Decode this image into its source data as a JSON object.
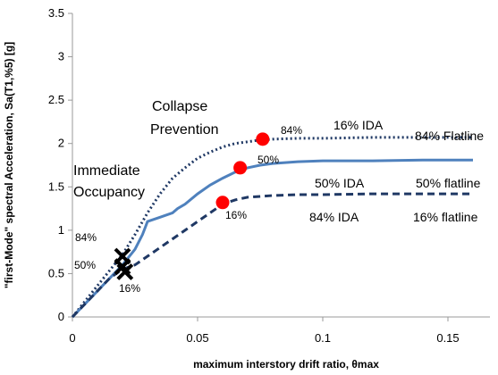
{
  "chart_data": {
    "type": "line",
    "xlabel": "maximum interstory drift ratio, θmax",
    "ylabel": "\"first-Mode\" spectral Acceleration, Sa(T1,%5) [g]",
    "xlim": [
      0,
      0.16
    ],
    "ylim": [
      0,
      3.5
    ],
    "xticks": [
      0,
      0.05,
      0.1,
      0.15
    ],
    "xtick_labels": [
      "0",
      "0.05",
      "0.1",
      "0.15"
    ],
    "yticks": [
      0,
      0.5,
      1,
      1.5,
      2,
      2.5,
      3,
      3.5
    ],
    "ytick_labels": [
      "0",
      "0.5",
      "1",
      "1.5",
      "2",
      "2.5",
      "3",
      "3.5"
    ],
    "grid": false,
    "series": [
      {
        "name": "84% IDA",
        "color": "#1f3864",
        "style": "dotted",
        "x": [
          0,
          0.005,
          0.01,
          0.015,
          0.02,
          0.025,
          0.03,
          0.035,
          0.04,
          0.045,
          0.05,
          0.055,
          0.06,
          0.065,
          0.07,
          0.075,
          0.08,
          0.09,
          0.1,
          0.12,
          0.14,
          0.16
        ],
        "y": [
          0,
          0.18,
          0.36,
          0.54,
          0.72,
          0.95,
          1.2,
          1.42,
          1.6,
          1.72,
          1.83,
          1.9,
          1.96,
          2.0,
          2.02,
          2.04,
          2.05,
          2.06,
          2.06,
          2.07,
          2.07,
          2.07
        ]
      },
      {
        "name": "50% IDA",
        "color": "#4f81bd",
        "style": "solid",
        "x": [
          0,
          0.005,
          0.01,
          0.015,
          0.02,
          0.025,
          0.028,
          0.03,
          0.035,
          0.04,
          0.042,
          0.045,
          0.05,
          0.055,
          0.06,
          0.065,
          0.07,
          0.075,
          0.08,
          0.09,
          0.1,
          0.12,
          0.14,
          0.16
        ],
        "y": [
          0,
          0.15,
          0.3,
          0.45,
          0.6,
          0.78,
          0.95,
          1.1,
          1.15,
          1.2,
          1.25,
          1.3,
          1.42,
          1.52,
          1.6,
          1.67,
          1.72,
          1.75,
          1.77,
          1.79,
          1.8,
          1.8,
          1.81,
          1.81
        ]
      },
      {
        "name": "16% IDA",
        "color": "#1f3864",
        "style": "dashed",
        "x": [
          0,
          0.005,
          0.01,
          0.015,
          0.02,
          0.025,
          0.03,
          0.035,
          0.04,
          0.045,
          0.05,
          0.055,
          0.06,
          0.065,
          0.07,
          0.08,
          0.09,
          0.1,
          0.12,
          0.14,
          0.16
        ],
        "y": [
          0,
          0.15,
          0.3,
          0.45,
          0.55,
          0.6,
          0.7,
          0.8,
          0.9,
          1.0,
          1.1,
          1.2,
          1.3,
          1.35,
          1.38,
          1.4,
          1.41,
          1.41,
          1.42,
          1.42,
          1.42
        ]
      }
    ],
    "collapse_points": [
      {
        "label": "84%",
        "x": 0.076,
        "y": 2.05,
        "color": "#ff0000"
      },
      {
        "label": "50%",
        "x": 0.067,
        "y": 1.72,
        "color": "#ff0000"
      },
      {
        "label": "16%",
        "x": 0.06,
        "y": 1.32,
        "color": "#ff0000"
      }
    ],
    "io_points": [
      {
        "label": "84%",
        "x": 0.02,
        "y": 0.7
      },
      {
        "label": "50%",
        "x": 0.02,
        "y": 0.58
      },
      {
        "label": "16%",
        "x": 0.021,
        "y": 0.52
      }
    ],
    "io_marker_color": "#000000",
    "annotations": {
      "collapse_prevention_1": "Collapse",
      "collapse_prevention_2": "Prevention",
      "immediate_occupancy_1": "Immediate",
      "immediate_occupancy_2": "Occupancy",
      "label_16_ida": "16% IDA",
      "label_50_ida": "50% IDA",
      "label_84_ida": "84% IDA",
      "label_84_flatline": "84% Flatline",
      "label_50_flatline": "50% flatline",
      "label_16_flatline": "16% flatline",
      "cp_84": "84%",
      "cp_50": "50%",
      "cp_16": "16%",
      "io_84": "84%",
      "io_50": "50%",
      "io_16": "16%"
    }
  }
}
